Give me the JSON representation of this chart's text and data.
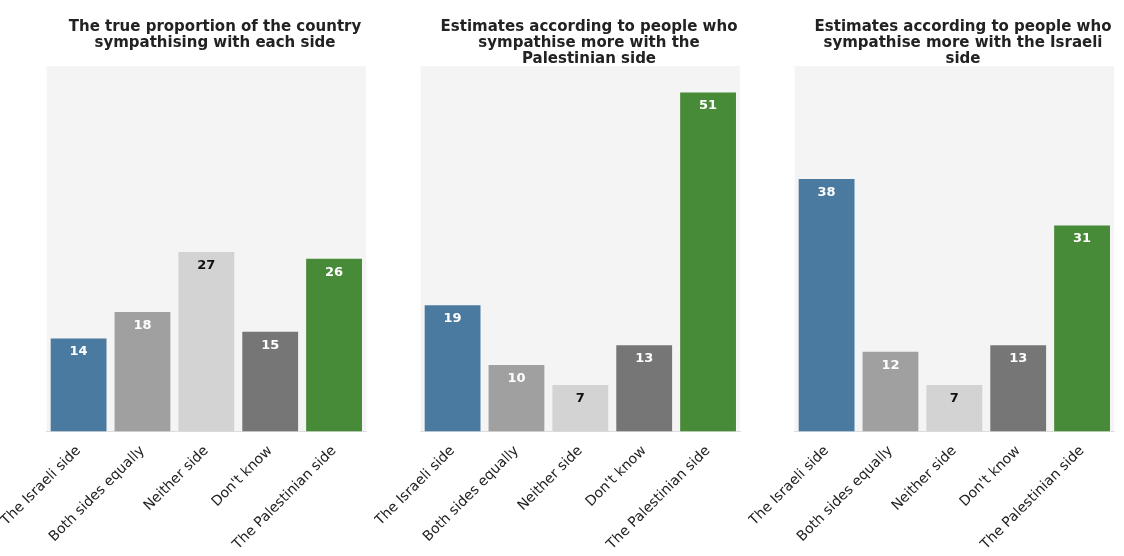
{
  "chart_data": [
    {
      "type": "bar",
      "title": "The true proportion of the country sympathising with each side",
      "categories": [
        "The Israeli side",
        "Both sides equally",
        "Neither side",
        "Don't know",
        "The Palestinian side"
      ],
      "values": [
        14,
        18,
        27,
        15,
        26
      ],
      "colors": [
        "#4a7aa0",
        "#a0a0a0",
        "#d3d3d3",
        "#767676",
        "#478a38"
      ],
      "ylim": [
        0,
        55
      ],
      "data_labels": true
    },
    {
      "type": "bar",
      "title": "Estimates according to people who sympathise more with the Palestinian side",
      "categories": [
        "The Israeli side",
        "Both sides equally",
        "Neither side",
        "Don't know",
        "The Palestinian side"
      ],
      "values": [
        19,
        10,
        7,
        13,
        51
      ],
      "colors": [
        "#4a7aa0",
        "#a0a0a0",
        "#d3d3d3",
        "#767676",
        "#478a38"
      ],
      "ylim": [
        0,
        55
      ],
      "data_labels": true
    },
    {
      "type": "bar",
      "title": "Estimates according to people who sympathise more with the Israeli side",
      "categories": [
        "The Israeli side",
        "Both sides equally",
        "Neither side",
        "Don't know",
        "The Palestinian side"
      ],
      "values": [
        38,
        12,
        7,
        13,
        31
      ],
      "colors": [
        "#4a7aa0",
        "#a0a0a0",
        "#d3d3d3",
        "#767676",
        "#478a38"
      ],
      "ylim": [
        0,
        55
      ],
      "data_labels": true
    }
  ]
}
